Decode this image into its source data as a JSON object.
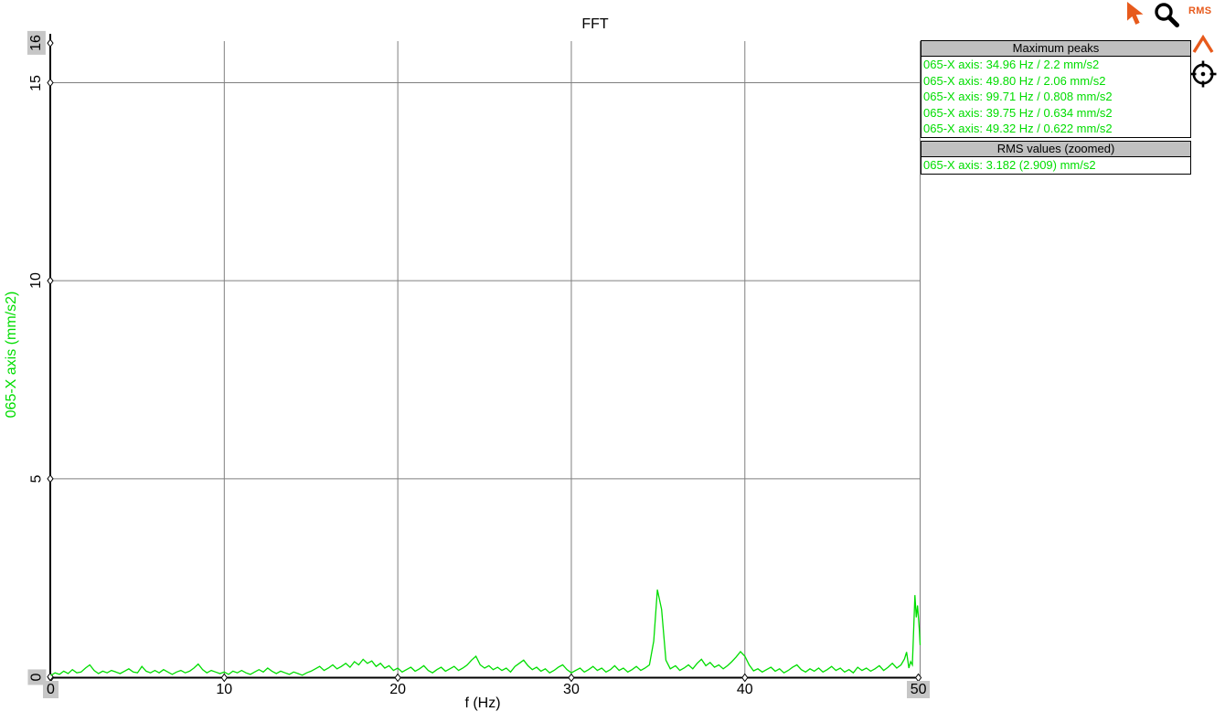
{
  "title": "FFT",
  "colors": {
    "trace_green": "#00dd00",
    "grid_gray": "#7f7f7f",
    "axis_black": "#000000",
    "highlight_bg": "#c6c6c6",
    "panel_header_bg": "#c0c0c0",
    "accent_orange": "#e75a1c"
  },
  "toolbar": {
    "rms_label": "RMS",
    "icons": [
      "cursor-icon",
      "magnifier-icon",
      "rms-button",
      "peak-caret-icon",
      "crosshair-icon"
    ]
  },
  "peaks_panel": {
    "header": "Maximum peaks",
    "items": [
      "065-X axis: 34.96 Hz / 2.2 mm/s2",
      "065-X axis: 49.80 Hz / 2.06 mm/s2",
      "065-X axis: 99.71 Hz / 0.808 mm/s2",
      "065-X axis: 39.75 Hz / 0.634 mm/s2",
      "065-X axis: 49.32 Hz / 0.622 mm/s2"
    ]
  },
  "rms_panel": {
    "header": "RMS values (zoomed)",
    "items": [
      "065-X axis: 3.182 (2.909) mm/s2"
    ]
  },
  "chart_data": {
    "type": "line",
    "title": "FFT",
    "xlabel": "f (Hz)",
    "ylabel": "065-X axis (mm/s2)",
    "xlim": [
      0,
      50.1
    ],
    "ylim": [
      0,
      16.05
    ],
    "grid": true,
    "xticks": [
      {
        "value": 0,
        "label": "0",
        "highlighted": true
      },
      {
        "value": 10,
        "label": "10",
        "highlighted": false
      },
      {
        "value": 20,
        "label": "20",
        "highlighted": false
      },
      {
        "value": 30,
        "label": "30",
        "highlighted": false
      },
      {
        "value": 40,
        "label": "40",
        "highlighted": false
      },
      {
        "value": 50,
        "label": "50",
        "highlighted": true
      }
    ],
    "yticks": [
      {
        "value": 0,
        "label": "0",
        "highlighted": true
      },
      {
        "value": 5,
        "label": "5",
        "highlighted": false
      },
      {
        "value": 10,
        "label": "10",
        "highlighted": false
      },
      {
        "value": 15,
        "label": "15",
        "highlighted": false
      },
      {
        "value": 16,
        "label": "16",
        "highlighted": true
      }
    ],
    "series": [
      {
        "name": "065-X axis",
        "color": "#00dd00",
        "points": [
          [
            0,
            0.03
          ],
          [
            0.25,
            0.1
          ],
          [
            0.5,
            0.06
          ],
          [
            0.75,
            0.14
          ],
          [
            1,
            0.08
          ],
          [
            1.25,
            0.18
          ],
          [
            1.5,
            0.1
          ],
          [
            1.75,
            0.12
          ],
          [
            2,
            0.22
          ],
          [
            2.25,
            0.3
          ],
          [
            2.5,
            0.16
          ],
          [
            2.75,
            0.08
          ],
          [
            3,
            0.14
          ],
          [
            3.25,
            0.1
          ],
          [
            3.5,
            0.16
          ],
          [
            3.75,
            0.12
          ],
          [
            4,
            0.08
          ],
          [
            4.25,
            0.14
          ],
          [
            4.5,
            0.2
          ],
          [
            4.75,
            0.12
          ],
          [
            5,
            0.1
          ],
          [
            5.25,
            0.26
          ],
          [
            5.5,
            0.14
          ],
          [
            5.75,
            0.1
          ],
          [
            6,
            0.16
          ],
          [
            6.25,
            0.1
          ],
          [
            6.5,
            0.18
          ],
          [
            6.75,
            0.12
          ],
          [
            7,
            0.06
          ],
          [
            7.25,
            0.12
          ],
          [
            7.5,
            0.16
          ],
          [
            7.75,
            0.1
          ],
          [
            8,
            0.14
          ],
          [
            8.25,
            0.22
          ],
          [
            8.5,
            0.32
          ],
          [
            8.75,
            0.18
          ],
          [
            9,
            0.1
          ],
          [
            9.25,
            0.16
          ],
          [
            9.5,
            0.12
          ],
          [
            9.75,
            0.08
          ],
          [
            10,
            0.12
          ],
          [
            10.25,
            0.06
          ],
          [
            10.5,
            0.14
          ],
          [
            10.75,
            0.1
          ],
          [
            11,
            0.16
          ],
          [
            11.25,
            0.1
          ],
          [
            11.5,
            0.06
          ],
          [
            11.75,
            0.12
          ],
          [
            12,
            0.18
          ],
          [
            12.25,
            0.12
          ],
          [
            12.5,
            0.22
          ],
          [
            12.75,
            0.14
          ],
          [
            13,
            0.08
          ],
          [
            13.25,
            0.14
          ],
          [
            13.5,
            0.1
          ],
          [
            13.75,
            0.06
          ],
          [
            14,
            0.12
          ],
          [
            14.25,
            0.08
          ],
          [
            14.5,
            0.04
          ],
          [
            14.75,
            0.1
          ],
          [
            15,
            0.14
          ],
          [
            15.25,
            0.2
          ],
          [
            15.5,
            0.26
          ],
          [
            15.75,
            0.16
          ],
          [
            16,
            0.22
          ],
          [
            16.25,
            0.3
          ],
          [
            16.5,
            0.2
          ],
          [
            16.75,
            0.26
          ],
          [
            17,
            0.34
          ],
          [
            17.25,
            0.24
          ],
          [
            17.5,
            0.38
          ],
          [
            17.75,
            0.3
          ],
          [
            18,
            0.44
          ],
          [
            18.25,
            0.34
          ],
          [
            18.5,
            0.4
          ],
          [
            18.75,
            0.26
          ],
          [
            19,
            0.34
          ],
          [
            19.25,
            0.22
          ],
          [
            19.5,
            0.28
          ],
          [
            19.75,
            0.16
          ],
          [
            20,
            0.22
          ],
          [
            20.25,
            0.12
          ],
          [
            20.5,
            0.18
          ],
          [
            20.75,
            0.24
          ],
          [
            21,
            0.14
          ],
          [
            21.25,
            0.2
          ],
          [
            21.5,
            0.28
          ],
          [
            21.75,
            0.16
          ],
          [
            22,
            0.1
          ],
          [
            22.25,
            0.18
          ],
          [
            22.5,
            0.24
          ],
          [
            22.75,
            0.14
          ],
          [
            23,
            0.2
          ],
          [
            23.25,
            0.26
          ],
          [
            23.5,
            0.16
          ],
          [
            23.75,
            0.22
          ],
          [
            24,
            0.3
          ],
          [
            24.25,
            0.42
          ],
          [
            24.5,
            0.52
          ],
          [
            24.75,
            0.3
          ],
          [
            25,
            0.22
          ],
          [
            25.25,
            0.28
          ],
          [
            25.5,
            0.18
          ],
          [
            25.75,
            0.24
          ],
          [
            26,
            0.16
          ],
          [
            26.25,
            0.22
          ],
          [
            26.5,
            0.12
          ],
          [
            26.75,
            0.26
          ],
          [
            27,
            0.34
          ],
          [
            27.25,
            0.42
          ],
          [
            27.5,
            0.28
          ],
          [
            27.75,
            0.18
          ],
          [
            28,
            0.24
          ],
          [
            28.25,
            0.14
          ],
          [
            28.5,
            0.2
          ],
          [
            28.75,
            0.1
          ],
          [
            29,
            0.16
          ],
          [
            29.25,
            0.24
          ],
          [
            29.5,
            0.3
          ],
          [
            29.75,
            0.18
          ],
          [
            30,
            0.1
          ],
          [
            30.25,
            0.16
          ],
          [
            30.5,
            0.22
          ],
          [
            30.75,
            0.12
          ],
          [
            31,
            0.18
          ],
          [
            31.25,
            0.26
          ],
          [
            31.5,
            0.16
          ],
          [
            31.75,
            0.22
          ],
          [
            32,
            0.12
          ],
          [
            32.25,
            0.18
          ],
          [
            32.5,
            0.28
          ],
          [
            32.75,
            0.16
          ],
          [
            33,
            0.22
          ],
          [
            33.25,
            0.12
          ],
          [
            33.5,
            0.18
          ],
          [
            33.75,
            0.26
          ],
          [
            34,
            0.16
          ],
          [
            34.25,
            0.22
          ],
          [
            34.5,
            0.3
          ],
          [
            34.75,
            0.9
          ],
          [
            34.96,
            2.2
          ],
          [
            35.2,
            1.7
          ],
          [
            35.45,
            0.42
          ],
          [
            35.7,
            0.2
          ],
          [
            36,
            0.28
          ],
          [
            36.25,
            0.16
          ],
          [
            36.5,
            0.22
          ],
          [
            36.75,
            0.3
          ],
          [
            37,
            0.2
          ],
          [
            37.25,
            0.34
          ],
          [
            37.5,
            0.44
          ],
          [
            37.75,
            0.28
          ],
          [
            38,
            0.36
          ],
          [
            38.25,
            0.24
          ],
          [
            38.5,
            0.3
          ],
          [
            38.75,
            0.2
          ],
          [
            39,
            0.28
          ],
          [
            39.25,
            0.38
          ],
          [
            39.5,
            0.5
          ],
          [
            39.75,
            0.634
          ],
          [
            40,
            0.52
          ],
          [
            40.25,
            0.3
          ],
          [
            40.5,
            0.15
          ],
          [
            40.75,
            0.2
          ],
          [
            41,
            0.12
          ],
          [
            41.25,
            0.18
          ],
          [
            41.5,
            0.24
          ],
          [
            41.75,
            0.14
          ],
          [
            42,
            0.2
          ],
          [
            42.25,
            0.1
          ],
          [
            42.5,
            0.16
          ],
          [
            42.75,
            0.24
          ],
          [
            43,
            0.3
          ],
          [
            43.25,
            0.18
          ],
          [
            43.5,
            0.12
          ],
          [
            43.75,
            0.2
          ],
          [
            44,
            0.14
          ],
          [
            44.25,
            0.22
          ],
          [
            44.5,
            0.12
          ],
          [
            44.75,
            0.18
          ],
          [
            45,
            0.26
          ],
          [
            45.25,
            0.16
          ],
          [
            45.5,
            0.22
          ],
          [
            45.75,
            0.12
          ],
          [
            46,
            0.18
          ],
          [
            46.25,
            0.1
          ],
          [
            46.5,
            0.24
          ],
          [
            46.75,
            0.16
          ],
          [
            47,
            0.22
          ],
          [
            47.25,
            0.14
          ],
          [
            47.5,
            0.2
          ],
          [
            47.75,
            0.28
          ],
          [
            48,
            0.16
          ],
          [
            48.25,
            0.24
          ],
          [
            48.5,
            0.34
          ],
          [
            48.75,
            0.22
          ],
          [
            49,
            0.3
          ],
          [
            49.2,
            0.45
          ],
          [
            49.32,
            0.622
          ],
          [
            49.45,
            0.22
          ],
          [
            49.55,
            0.38
          ],
          [
            49.65,
            0.3
          ],
          [
            49.72,
            1.1
          ],
          [
            49.8,
            2.06
          ],
          [
            49.88,
            1.5
          ],
          [
            49.95,
            1.8
          ],
          [
            50.05,
            1.2
          ],
          [
            50.1,
            0.8
          ]
        ]
      }
    ]
  }
}
